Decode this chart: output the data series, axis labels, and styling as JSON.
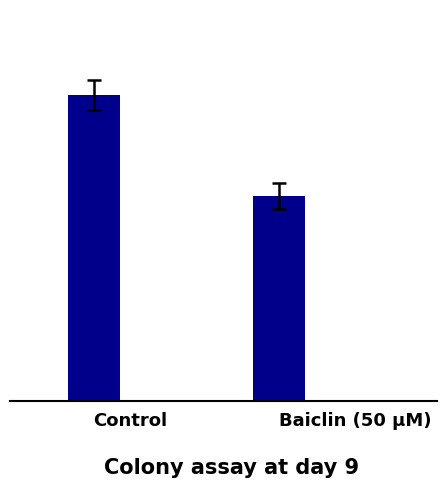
{
  "categories": [
    "Control",
    "Baiclin (50 μM)"
  ],
  "values": [
    0.82,
    0.55
  ],
  "errors": [
    0.04,
    0.035
  ],
  "bar_color": "#00008B",
  "bar_width": 0.28,
  "bar_positions": [
    1,
    2
  ],
  "xlim": [
    0.55,
    2.85
  ],
  "ylim": [
    0.0,
    1.05
  ],
  "title": "Colony assay at day 9",
  "title_fontsize": 15,
  "title_fontweight": "bold",
  "tick_fontsize": 13,
  "tick_fontweight": "bold",
  "background_color": "#ffffff",
  "error_capsize": 5,
  "error_linewidth": 1.8,
  "error_capthick": 1.8
}
